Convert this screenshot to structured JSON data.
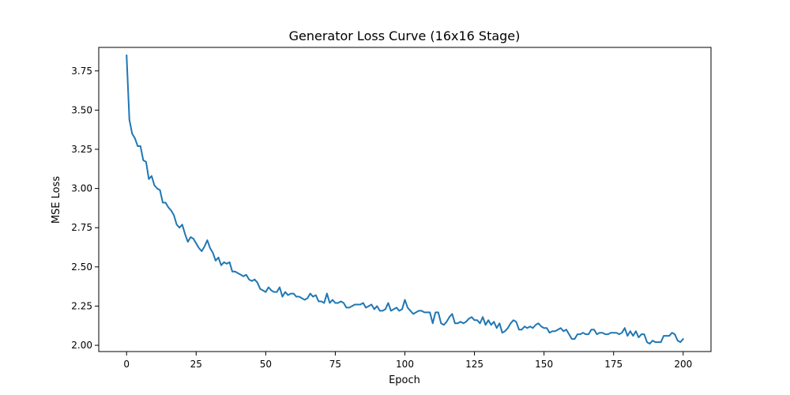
{
  "chart_data": {
    "type": "line",
    "title": "Generator Loss Curve (16x16 Stage)",
    "xlabel": "Epoch",
    "ylabel": "MSE Loss",
    "xlim": [
      -10,
      210
    ],
    "ylim": [
      1.96,
      3.9
    ],
    "xticks": [
      0,
      25,
      50,
      75,
      100,
      125,
      150,
      175,
      200
    ],
    "yticks": [
      2.0,
      2.25,
      2.5,
      2.75,
      3.0,
      3.25,
      3.5,
      3.75
    ],
    "grid": false,
    "line_color": "#1f77b4",
    "series": [
      {
        "y": [
          3.85,
          3.44,
          3.35,
          3.32,
          3.27,
          3.27,
          3.18,
          3.17,
          3.06,
          3.08,
          3.02,
          3.0,
          2.99,
          2.91,
          2.91,
          2.88,
          2.86,
          2.83,
          2.77,
          2.75,
          2.77,
          2.71,
          2.66,
          2.69,
          2.68,
          2.65,
          2.62,
          2.6,
          2.63,
          2.67,
          2.62,
          2.59,
          2.54,
          2.56,
          2.51,
          2.53,
          2.52,
          2.53,
          2.47,
          2.47,
          2.46,
          2.45,
          2.44,
          2.45,
          2.42,
          2.41,
          2.42,
          2.4,
          2.36,
          2.35,
          2.34,
          2.37,
          2.35,
          2.34,
          2.34,
          2.37,
          2.31,
          2.34,
          2.32,
          2.33,
          2.33,
          2.31,
          2.31,
          2.3,
          2.29,
          2.3,
          2.33,
          2.31,
          2.32,
          2.28,
          2.28,
          2.27,
          2.33,
          2.27,
          2.29,
          2.27,
          2.27,
          2.28,
          2.27,
          2.24,
          2.24,
          2.25,
          2.26,
          2.26,
          2.26,
          2.27,
          2.24,
          2.25,
          2.26,
          2.23,
          2.25,
          2.22,
          2.22,
          2.23,
          2.27,
          2.22,
          2.23,
          2.24,
          2.22,
          2.23,
          2.29,
          2.24,
          2.22,
          2.2,
          2.21,
          2.22,
          2.22,
          2.21,
          2.21,
          2.21,
          2.14,
          2.21,
          2.21,
          2.14,
          2.13,
          2.15,
          2.18,
          2.2,
          2.14,
          2.14,
          2.15,
          2.14,
          2.15,
          2.17,
          2.18,
          2.16,
          2.16,
          2.14,
          2.18,
          2.13,
          2.16,
          2.13,
          2.15,
          2.11,
          2.14,
          2.08,
          2.09,
          2.11,
          2.14,
          2.16,
          2.15,
          2.1,
          2.1,
          2.12,
          2.11,
          2.12,
          2.11,
          2.13,
          2.14,
          2.12,
          2.11,
          2.11,
          2.08,
          2.09,
          2.09,
          2.1,
          2.11,
          2.09,
          2.1,
          2.07,
          2.04,
          2.04,
          2.07,
          2.07,
          2.08,
          2.07,
          2.07,
          2.1,
          2.1,
          2.07,
          2.08,
          2.08,
          2.07,
          2.07,
          2.08,
          2.08,
          2.08,
          2.07,
          2.08,
          2.11,
          2.06,
          2.09,
          2.06,
          2.09,
          2.05,
          2.07,
          2.07,
          2.02,
          2.01,
          2.03,
          2.02,
          2.02,
          2.02,
          2.06,
          2.06,
          2.06,
          2.08,
          2.07,
          2.03,
          2.02,
          2.04
        ]
      }
    ]
  }
}
